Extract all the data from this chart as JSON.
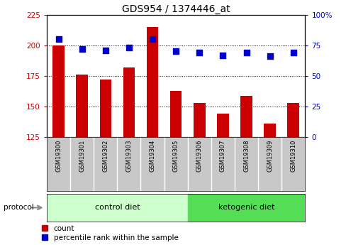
{
  "title": "GDS954 / 1374446_at",
  "samples": [
    "GSM19300",
    "GSM19301",
    "GSM19302",
    "GSM19303",
    "GSM19304",
    "GSM19305",
    "GSM19306",
    "GSM19307",
    "GSM19308",
    "GSM19309",
    "GSM19310"
  ],
  "counts": [
    200,
    176,
    172,
    182,
    215,
    163,
    153,
    144,
    159,
    136,
    153
  ],
  "percentile_ranks": [
    80,
    72,
    71,
    73,
    80,
    70,
    69,
    67,
    69,
    66,
    69
  ],
  "ylim_left": [
    125,
    225
  ],
  "ylim_right": [
    0,
    100
  ],
  "yticks_left": [
    125,
    150,
    175,
    200,
    225
  ],
  "yticks_right": [
    0,
    25,
    50,
    75,
    100
  ],
  "bar_color": "#cc0000",
  "dot_color": "#0000cc",
  "grid_color": "#000000",
  "control_count": 6,
  "ketogenic_count": 5,
  "control_label": "control diet",
  "ketogenic_label": "ketogenic diet",
  "protocol_label": "protocol",
  "legend_count": "count",
  "legend_percentile": "percentile rank within the sample",
  "background_gray": "#c8c8c8",
  "background_control": "#ccffcc",
  "background_ketogenic": "#55dd55",
  "bar_width": 0.5,
  "dot_size": 28
}
